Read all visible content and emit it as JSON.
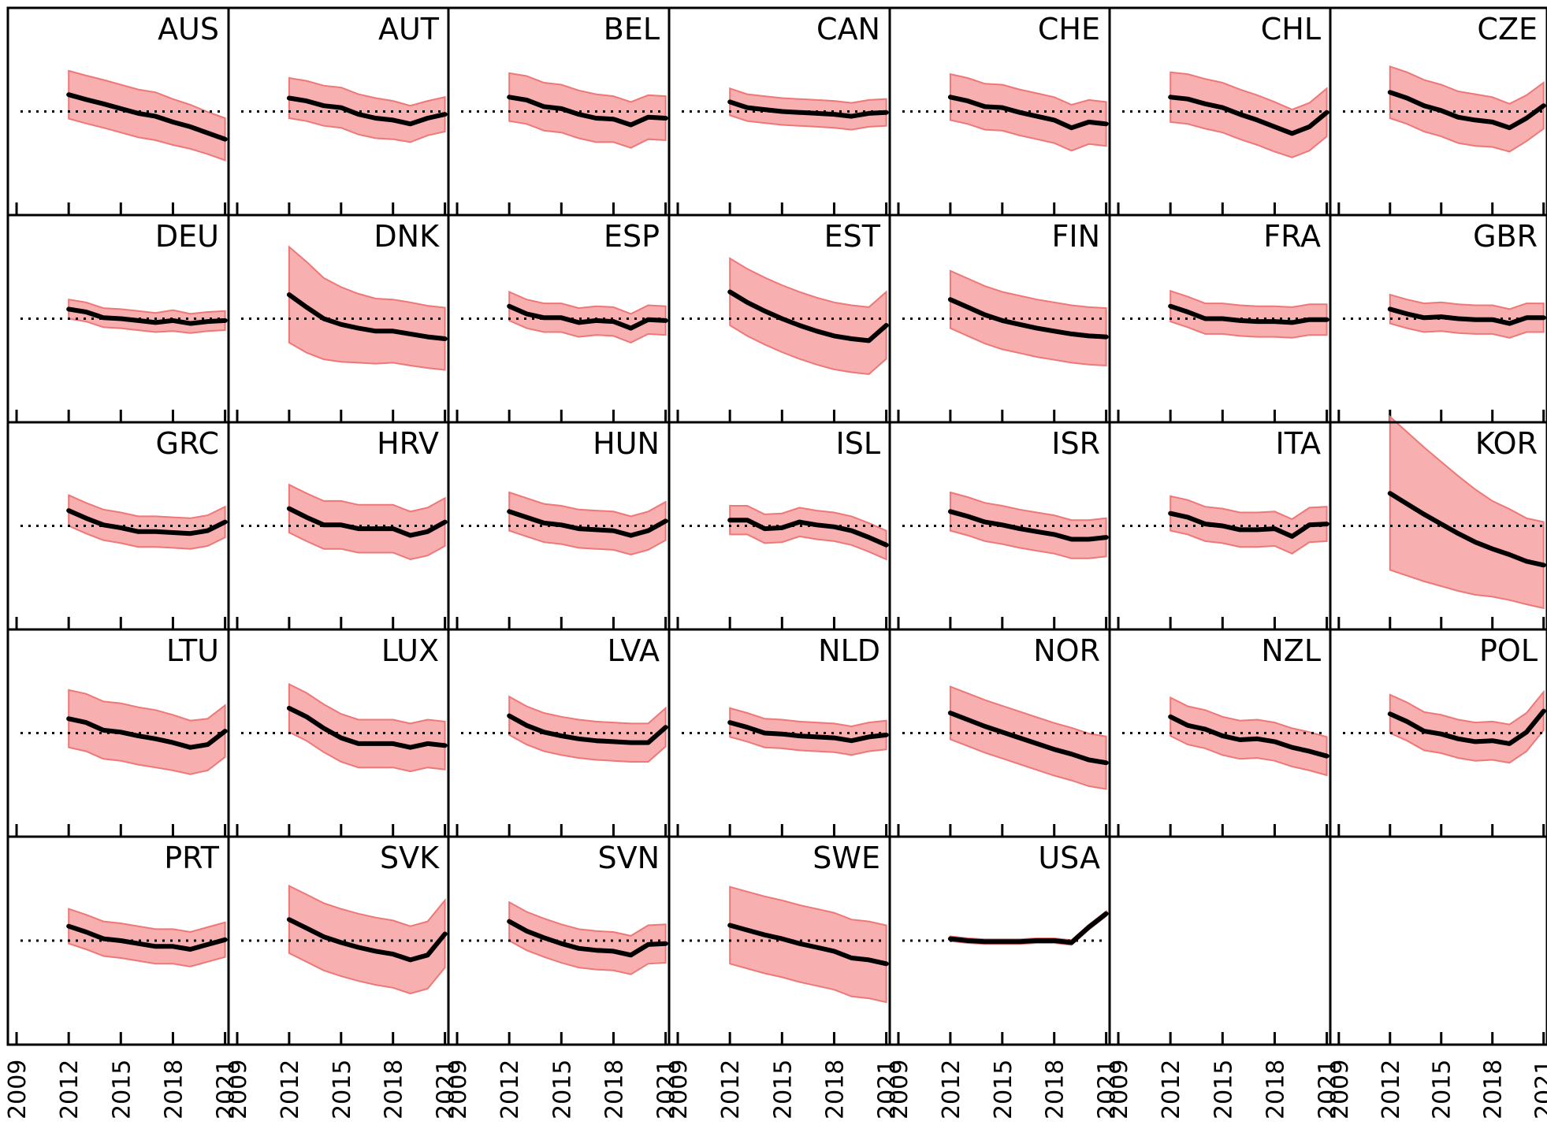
{
  "chart_data": {
    "type": "line",
    "layout": "small-multiples",
    "x_ticks": [
      "2009",
      "2012",
      "2015",
      "2018",
      "2021"
    ],
    "xlim": [
      2008.5,
      2021.2
    ],
    "ylim": [
      -2.0,
      2.0
    ],
    "reference_line": 0,
    "reference_line_style": "dotted",
    "band_color": "#f7a1a1",
    "band_edge_color": "#ee7777",
    "line_color": "#000000",
    "ref_color": "#000000",
    "years": [
      2012,
      2013,
      2014,
      2015,
      2016,
      2017,
      2018,
      2019,
      2020,
      2021
    ],
    "panels": [
      {
        "name": "AUS",
        "mean": [
          0.35,
          0.25,
          0.16,
          0.06,
          -0.04,
          -0.1,
          -0.22,
          -0.32,
          -0.45,
          -0.58
        ],
        "half_width": [
          0.5,
          0.5,
          0.5,
          0.5,
          0.5,
          0.5,
          0.48,
          0.46,
          0.44,
          0.44
        ]
      },
      {
        "name": "AUT",
        "mean": [
          0.28,
          0.22,
          0.12,
          0.08,
          -0.06,
          -0.14,
          -0.18,
          -0.26,
          -0.14,
          -0.06
        ],
        "half_width": [
          0.42,
          0.42,
          0.42,
          0.42,
          0.42,
          0.42,
          0.4,
          0.38,
          0.36,
          0.36
        ]
      },
      {
        "name": "BEL",
        "mean": [
          0.3,
          0.24,
          0.1,
          0.06,
          -0.06,
          -0.14,
          -0.16,
          -0.28,
          -0.12,
          -0.14
        ],
        "half_width": [
          0.5,
          0.5,
          0.5,
          0.5,
          0.5,
          0.5,
          0.48,
          0.48,
          0.46,
          0.46
        ]
      },
      {
        "name": "CAN",
        "mean": [
          0.2,
          0.08,
          0.04,
          0.0,
          -0.02,
          -0.04,
          -0.06,
          -0.1,
          -0.04,
          -0.02
        ],
        "half_width": [
          0.28,
          0.28,
          0.28,
          0.28,
          0.28,
          0.28,
          0.28,
          0.28,
          0.28,
          0.28
        ]
      },
      {
        "name": "CHE",
        "mean": [
          0.3,
          0.22,
          0.1,
          0.08,
          -0.02,
          -0.1,
          -0.18,
          -0.34,
          -0.22,
          -0.26
        ],
        "half_width": [
          0.48,
          0.48,
          0.48,
          0.48,
          0.48,
          0.48,
          0.48,
          0.48,
          0.46,
          0.46
        ]
      },
      {
        "name": "CHL",
        "mean": [
          0.3,
          0.26,
          0.16,
          0.08,
          -0.06,
          -0.18,
          -0.32,
          -0.46,
          -0.32,
          -0.02
        ],
        "half_width": [
          0.52,
          0.52,
          0.52,
          0.52,
          0.52,
          0.52,
          0.52,
          0.5,
          0.5,
          0.5
        ]
      },
      {
        "name": "CZE",
        "mean": [
          0.4,
          0.28,
          0.12,
          0.02,
          -0.12,
          -0.18,
          -0.22,
          -0.34,
          -0.14,
          0.12
        ],
        "half_width": [
          0.54,
          0.54,
          0.54,
          0.54,
          0.54,
          0.54,
          0.52,
          0.5,
          0.48,
          0.48
        ]
      },
      {
        "name": "DEU",
        "mean": [
          0.2,
          0.14,
          0.02,
          0.0,
          -0.04,
          -0.08,
          -0.04,
          -0.1,
          -0.06,
          -0.04
        ],
        "half_width": [
          0.2,
          0.2,
          0.2,
          0.2,
          0.2,
          0.2,
          0.22,
          0.2,
          0.2,
          0.2
        ]
      },
      {
        "name": "DNK",
        "mean": [
          0.5,
          0.24,
          0.0,
          -0.12,
          -0.2,
          -0.26,
          -0.26,
          -0.32,
          -0.38,
          -0.42
        ],
        "half_width": [
          1.0,
          0.95,
          0.85,
          0.78,
          0.72,
          0.68,
          0.66,
          0.66,
          0.65,
          0.65
        ]
      },
      {
        "name": "ESP",
        "mean": [
          0.26,
          0.1,
          0.02,
          0.02,
          -0.08,
          -0.04,
          -0.06,
          -0.2,
          -0.02,
          -0.04
        ],
        "half_width": [
          0.3,
          0.3,
          0.3,
          0.3,
          0.3,
          0.3,
          0.3,
          0.3,
          0.3,
          0.3
        ]
      },
      {
        "name": "EST",
        "mean": [
          0.56,
          0.34,
          0.16,
          0.0,
          -0.14,
          -0.26,
          -0.36,
          -0.42,
          -0.46,
          -0.14
        ],
        "half_width": [
          0.7,
          0.7,
          0.7,
          0.7,
          0.7,
          0.7,
          0.7,
          0.7,
          0.7,
          0.7
        ]
      },
      {
        "name": "FIN",
        "mean": [
          0.4,
          0.24,
          0.08,
          -0.04,
          -0.12,
          -0.2,
          -0.26,
          -0.32,
          -0.36,
          -0.38
        ],
        "half_width": [
          0.6,
          0.6,
          0.6,
          0.6,
          0.6,
          0.6,
          0.6,
          0.6,
          0.6,
          0.6
        ]
      },
      {
        "name": "FRA",
        "mean": [
          0.26,
          0.14,
          0.0,
          0.0,
          -0.04,
          -0.06,
          -0.06,
          -0.08,
          -0.02,
          -0.02
        ],
        "half_width": [
          0.32,
          0.32,
          0.32,
          0.32,
          0.32,
          0.32,
          0.32,
          0.32,
          0.32,
          0.32
        ]
      },
      {
        "name": "GBR",
        "mean": [
          0.2,
          0.1,
          0.02,
          0.04,
          0.0,
          -0.02,
          -0.02,
          -0.1,
          0.02,
          0.02
        ],
        "half_width": [
          0.3,
          0.3,
          0.3,
          0.3,
          0.3,
          0.3,
          0.3,
          0.3,
          0.3,
          0.3
        ]
      },
      {
        "name": "GRC",
        "mean": [
          0.32,
          0.16,
          0.02,
          -0.04,
          -0.12,
          -0.12,
          -0.14,
          -0.16,
          -0.1,
          0.08
        ],
        "half_width": [
          0.32,
          0.32,
          0.32,
          0.32,
          0.32,
          0.32,
          0.32,
          0.32,
          0.32,
          0.32
        ]
      },
      {
        "name": "HRV",
        "mean": [
          0.36,
          0.18,
          0.02,
          0.02,
          -0.06,
          -0.06,
          -0.06,
          -0.2,
          -0.12,
          0.08
        ],
        "half_width": [
          0.5,
          0.5,
          0.5,
          0.5,
          0.5,
          0.5,
          0.5,
          0.5,
          0.5,
          0.5
        ]
      },
      {
        "name": "HUN",
        "mean": [
          0.3,
          0.18,
          0.06,
          0.02,
          -0.06,
          -0.08,
          -0.1,
          -0.2,
          -0.1,
          0.1
        ],
        "half_width": [
          0.4,
          0.4,
          0.4,
          0.4,
          0.4,
          0.4,
          0.4,
          0.4,
          0.4,
          0.4
        ]
      },
      {
        "name": "ISL",
        "mean": [
          0.12,
          0.12,
          -0.06,
          -0.04,
          0.08,
          0.02,
          -0.02,
          -0.1,
          -0.24,
          -0.4
        ],
        "half_width": [
          0.3,
          0.3,
          0.3,
          0.3,
          0.3,
          0.3,
          0.3,
          0.3,
          0.3,
          0.3
        ]
      },
      {
        "name": "ISR",
        "mean": [
          0.3,
          0.2,
          0.08,
          0.02,
          -0.06,
          -0.12,
          -0.18,
          -0.28,
          -0.28,
          -0.24
        ],
        "half_width": [
          0.4,
          0.4,
          0.4,
          0.4,
          0.4,
          0.4,
          0.4,
          0.4,
          0.4,
          0.4
        ]
      },
      {
        "name": "ITA",
        "mean": [
          0.26,
          0.18,
          0.04,
          0.0,
          -0.08,
          -0.08,
          -0.06,
          -0.22,
          0.02,
          0.04
        ],
        "half_width": [
          0.36,
          0.36,
          0.36,
          0.36,
          0.36,
          0.36,
          0.36,
          0.36,
          0.36,
          0.36
        ]
      },
      {
        "name": "KOR",
        "mean": [
          0.68,
          0.46,
          0.24,
          0.04,
          -0.16,
          -0.34,
          -0.48,
          -0.6,
          -0.74,
          -0.82
        ],
        "half_width": [
          1.6,
          1.5,
          1.4,
          1.3,
          1.2,
          1.1,
          1.0,
          0.95,
          0.9,
          0.9
        ]
      },
      {
        "name": "LTU",
        "mean": [
          0.3,
          0.22,
          0.06,
          0.02,
          -0.06,
          -0.12,
          -0.2,
          -0.3,
          -0.24,
          0.04
        ],
        "half_width": [
          0.6,
          0.6,
          0.6,
          0.6,
          0.6,
          0.6,
          0.58,
          0.56,
          0.54,
          0.54
        ]
      },
      {
        "name": "LUX",
        "mean": [
          0.52,
          0.34,
          0.1,
          -0.1,
          -0.22,
          -0.22,
          -0.22,
          -0.3,
          -0.22,
          -0.26
        ],
        "half_width": [
          0.5,
          0.5,
          0.5,
          0.5,
          0.5,
          0.5,
          0.5,
          0.5,
          0.5,
          0.5
        ]
      },
      {
        "name": "LVA",
        "mean": [
          0.36,
          0.16,
          0.02,
          -0.06,
          -0.12,
          -0.16,
          -0.18,
          -0.2,
          -0.2,
          0.12
        ],
        "half_width": [
          0.4,
          0.4,
          0.4,
          0.4,
          0.4,
          0.4,
          0.4,
          0.4,
          0.4,
          0.4
        ]
      },
      {
        "name": "NLD",
        "mean": [
          0.22,
          0.12,
          0.0,
          -0.02,
          -0.06,
          -0.08,
          -0.1,
          -0.16,
          -0.08,
          -0.04
        ],
        "half_width": [
          0.3,
          0.3,
          0.3,
          0.3,
          0.3,
          0.3,
          0.3,
          0.3,
          0.3,
          0.3
        ]
      },
      {
        "name": "NOR",
        "mean": [
          0.42,
          0.28,
          0.14,
          0.02,
          -0.1,
          -0.22,
          -0.34,
          -0.44,
          -0.56,
          -0.62
        ],
        "half_width": [
          0.55,
          0.55,
          0.55,
          0.55,
          0.55,
          0.55,
          0.55,
          0.55,
          0.55,
          0.55
        ]
      },
      {
        "name": "NZL",
        "mean": [
          0.34,
          0.16,
          0.08,
          -0.06,
          -0.14,
          -0.12,
          -0.18,
          -0.3,
          -0.38,
          -0.48
        ],
        "half_width": [
          0.4,
          0.4,
          0.4,
          0.4,
          0.4,
          0.4,
          0.4,
          0.4,
          0.4,
          0.4
        ]
      },
      {
        "name": "POL",
        "mean": [
          0.4,
          0.24,
          0.04,
          -0.02,
          -0.12,
          -0.18,
          -0.16,
          -0.22,
          0.02,
          0.46
        ],
        "half_width": [
          0.4,
          0.4,
          0.4,
          0.4,
          0.4,
          0.4,
          0.4,
          0.4,
          0.4,
          0.4
        ]
      },
      {
        "name": "PRT",
        "mean": [
          0.3,
          0.18,
          0.04,
          0.0,
          -0.06,
          -0.12,
          -0.12,
          -0.18,
          -0.08,
          0.02
        ],
        "half_width": [
          0.36,
          0.36,
          0.36,
          0.36,
          0.36,
          0.36,
          0.36,
          0.36,
          0.36,
          0.36
        ]
      },
      {
        "name": "SVK",
        "mean": [
          0.44,
          0.26,
          0.08,
          -0.04,
          -0.14,
          -0.22,
          -0.28,
          -0.4,
          -0.3,
          0.14
        ],
        "half_width": [
          0.7,
          0.7,
          0.7,
          0.7,
          0.7,
          0.7,
          0.7,
          0.7,
          0.7,
          0.7
        ]
      },
      {
        "name": "SVN",
        "mean": [
          0.4,
          0.2,
          0.06,
          -0.06,
          -0.16,
          -0.2,
          -0.22,
          -0.3,
          -0.08,
          -0.06
        ],
        "half_width": [
          0.4,
          0.4,
          0.4,
          0.4,
          0.4,
          0.4,
          0.4,
          0.4,
          0.4,
          0.4
        ]
      },
      {
        "name": "SWE",
        "mean": [
          0.32,
          0.22,
          0.12,
          0.04,
          -0.06,
          -0.14,
          -0.22,
          -0.36,
          -0.4,
          -0.48
        ],
        "half_width": [
          0.8,
          0.8,
          0.8,
          0.8,
          0.8,
          0.8,
          0.8,
          0.8,
          0.8,
          0.8
        ]
      },
      {
        "name": "USA",
        "mean": [
          0.04,
          0.0,
          -0.02,
          -0.02,
          -0.02,
          0.0,
          0.0,
          -0.04,
          0.28,
          0.56
        ],
        "half_width": [
          0.05,
          0.05,
          0.05,
          0.05,
          0.05,
          0.05,
          0.05,
          0.05,
          0.05,
          0.05
        ]
      },
      {
        "name": "",
        "mean": [],
        "half_width": []
      },
      {
        "name": "",
        "mean": [],
        "half_width": []
      }
    ]
  }
}
